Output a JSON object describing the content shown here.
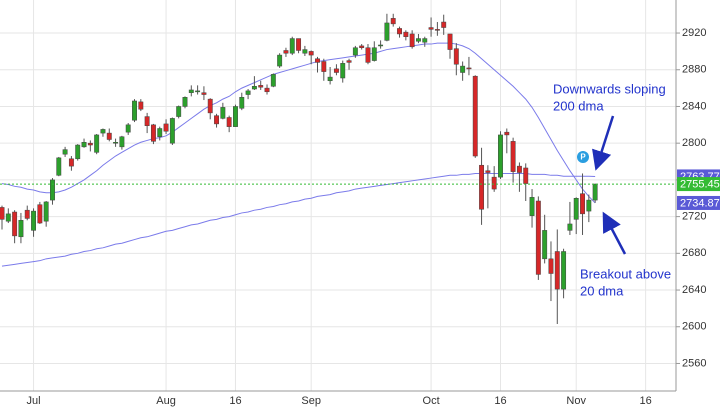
{
  "chart_data": {
    "type": "candlestick",
    "categories": [
      null,
      null,
      null,
      null,
      null,
      "Jul",
      null,
      null,
      null,
      null,
      null,
      null,
      null,
      null,
      null,
      null,
      null,
      null,
      null,
      null,
      null,
      null,
      null,
      null,
      null,
      null,
      "Aug",
      null,
      null,
      null,
      null,
      null,
      null,
      null,
      null,
      null,
      null,
      "16",
      null,
      null,
      null,
      null,
      null,
      null,
      null,
      null,
      null,
      null,
      null,
      "Sep",
      null,
      null,
      null,
      null,
      null,
      null,
      null,
      null,
      null,
      null,
      null,
      null,
      null,
      null,
      null,
      null,
      null,
      null,
      "Oct",
      null,
      null,
      null,
      null,
      null,
      null,
      null,
      null,
      null,
      null,
      "16",
      null,
      null,
      null,
      null,
      null,
      null,
      null,
      null,
      null,
      null,
      null,
      "Nov",
      null,
      null,
      null,
      null,
      null,
      null,
      null,
      null,
      null,
      null,
      "16"
    ],
    "open": [
      2730,
      2715,
      2725,
      2698,
      2727,
      2705,
      2733,
      2715,
      2738,
      2765,
      2788,
      2783,
      2783,
      2796,
      2800,
      2790,
      2811,
      2811,
      2800,
      2796,
      2812,
      2825,
      2845,
      2829,
      2820,
      2807,
      2821,
      2800,
      2829,
      2840,
      2855,
      2856,
      2855,
      2848,
      2830,
      2827,
      2828,
      2818,
      2838,
      2853,
      2859,
      2863,
      2860,
      2862,
      2884,
      2901,
      2898,
      2914,
      2898,
      2900,
      2892,
      2889,
      2868,
      2881,
      2871,
      2890,
      2896,
      2906,
      2904,
      2890,
      2906,
      2912,
      2936,
      2925,
      2921,
      2919,
      2911,
      2910,
      2926,
      2924,
      2932,
      2919,
      2903,
      2877,
      2882,
      2873,
      2776,
      2770,
      2763,
      2763,
      2812,
      2802,
      2775,
      2773,
      2721,
      2737,
      2674,
      2674,
      2682,
      2641,
      2705,
      2717,
      2745,
      2726,
      2738,
      null,
      null,
      null,
      null,
      null,
      null,
      null,
      null
    ],
    "high": [
      2732,
      2729,
      2727,
      2724,
      2732,
      2729,
      2736,
      2737,
      2762,
      2785,
      2796,
      2786,
      2799,
      2805,
      2803,
      2810,
      2816,
      2816,
      2805,
      2808,
      2822,
      2848,
      2848,
      2833,
      2821,
      2818,
      2826,
      2828,
      2841,
      2851,
      2863,
      2863,
      2862,
      2849,
      2832,
      2844,
      2830,
      2842,
      2855,
      2859,
      2873,
      2868,
      2864,
      2876,
      2898,
      2904,
      2916,
      2914,
      2906,
      2901,
      2894,
      2892,
      2883,
      2886,
      2890,
      2892,
      2906,
      2908,
      2908,
      2911,
      2912,
      2941,
      2941,
      2927,
      2923,
      2923,
      2919,
      2916,
      2937,
      2932,
      2940,
      2919,
      2909,
      2889,
      2894,
      2874,
      2795,
      2776,
      2775,
      2813,
      2816,
      2806,
      2779,
      2778,
      2750,
      2742,
      2722,
      2693,
      2706,
      2685,
      2736,
      2741,
      2767,
      2744,
      2756,
      null,
      null,
      null,
      null,
      null,
      null,
      null,
      null
    ],
    "low": [
      2706,
      2713,
      2691,
      2691,
      2716,
      2698,
      2712,
      2709,
      2733,
      2764,
      2785,
      2770,
      2781,
      2795,
      2791,
      2788,
      2807,
      2802,
      2796,
      2793,
      2809,
      2823,
      2835,
      2811,
      2799,
      2803,
      2810,
      2798,
      2827,
      2838,
      2851,
      2853,
      2847,
      2826,
      2817,
      2826,
      2812,
      2818,
      2836,
      2848,
      2858,
      2858,
      2853,
      2861,
      2882,
      2894,
      2896,
      2898,
      2895,
      2886,
      2877,
      2868,
      2864,
      2874,
      2866,
      2880,
      2893,
      2902,
      2886,
      2889,
      2903,
      2911,
      2927,
      2915,
      2912,
      2903,
      2909,
      2905,
      2916,
      2917,
      2918,
      2892,
      2874,
      2868,
      2874,
      2784,
      2711,
      2729,
      2747,
      2761,
      2789,
      2757,
      2747,
      2737,
      2708,
      2651,
      2669,
      2628,
      2603,
      2631,
      2700,
      2701,
      2700,
      2714,
      2735,
      null,
      null,
      null,
      null,
      null,
      null,
      null,
      null
    ],
    "close": [
      2717,
      2723,
      2699,
      2716,
      2718,
      2726,
      2713,
      2736,
      2760,
      2784,
      2793,
      2775,
      2798,
      2801,
      2798,
      2809,
      2815,
      2804,
      2801,
      2807,
      2820,
      2846,
      2837,
      2819,
      2802,
      2816,
      2813,
      2827,
      2840,
      2850,
      2858,
      2857,
      2853,
      2833,
      2821,
      2839,
      2818,
      2840,
      2850,
      2857,
      2862,
      2861,
      2856,
      2875,
      2896,
      2898,
      2914,
      2901,
      2902,
      2896,
      2888,
      2878,
      2872,
      2877,
      2887,
      2888,
      2904,
      2904,
      2888,
      2904,
      2907,
      2931,
      2930,
      2919,
      2916,
      2905,
      2914,
      2914,
      2924,
      2923,
      2926,
      2902,
      2886,
      2884,
      2881,
      2786,
      2728,
      2768,
      2750,
      2809,
      2809,
      2769,
      2768,
      2756,
      2741,
      2657,
      2705,
      2658,
      2641,
      2682,
      2712,
      2740,
      2723,
      2738,
      2755.45,
      null,
      null,
      null,
      null,
      null,
      null,
      null,
      null
    ],
    "up_color": "#2ca02c",
    "down_color": "#d62728",
    "lines": [
      {
        "color": "#7b7bea",
        "values": [
          2666,
          2667,
          2668,
          2669,
          2670,
          2671,
          2672,
          2674,
          2675,
          2676,
          2677,
          2679,
          2680,
          2682,
          2683,
          2685,
          2686,
          2688,
          2690,
          2691,
          2693,
          2695,
          2697,
          2698,
          2700,
          2702,
          2704,
          2705,
          2707,
          2709,
          2711,
          2712,
          2714,
          2716,
          2717,
          2719,
          2720,
          2722,
          2724,
          2725,
          2727,
          2728,
          2730,
          2731,
          2733,
          2734,
          2736,
          2737,
          2739,
          2740,
          2742,
          2743,
          2744,
          2746,
          2747,
          2748,
          2750,
          2751,
          2752,
          2753,
          2754,
          2755,
          2756,
          2757,
          2758,
          2759,
          2760,
          2761,
          2762,
          2763,
          2764,
          2765,
          2765,
          2766,
          2766,
          2767,
          2767,
          2767,
          2767,
          2767,
          2767,
          2767,
          2767,
          2767,
          2766,
          2766,
          2766,
          2765,
          2765,
          2764,
          2764,
          2764,
          2764,
          2764,
          2763.77,
          null,
          null,
          null,
          null,
          null,
          null,
          null,
          null
        ]
      },
      {
        "color": "#7b7bea",
        "values": [
          2756,
          2755,
          2753,
          2752,
          2750,
          2749,
          2747,
          2746,
          2746,
          2747,
          2749,
          2752,
          2756,
          2760,
          2765,
          2770,
          2776,
          2781,
          2786,
          2790,
          2794,
          2798,
          2801,
          2803,
          2805,
          2806,
          2808,
          2812,
          2817,
          2822,
          2827,
          2832,
          2837,
          2841,
          2844,
          2848,
          2851,
          2856,
          2860,
          2863,
          2866,
          2869,
          2872,
          2875,
          2877,
          2879,
          2881,
          2883,
          2885,
          2887,
          2889,
          2890,
          2891,
          2892,
          2893,
          2894,
          2895,
          2896,
          2897,
          2898,
          2900,
          2902,
          2903,
          2904,
          2905,
          2906,
          2907,
          2908,
          2908,
          2909,
          2909,
          2909,
          2908,
          2906,
          2903,
          2898,
          2892,
          2886,
          2880,
          2874,
          2868,
          2862,
          2855,
          2848,
          2839,
          2828,
          2816,
          2804,
          2792,
          2781,
          2770,
          2760,
          2750,
          2742,
          2734.87,
          null,
          null,
          null,
          null,
          null,
          null,
          null,
          null
        ]
      }
    ],
    "last_price_color": "#33bb33",
    "ylim": [
      2530,
      2956
    ],
    "yticks": [
      2560,
      2600,
      2640,
      2680,
      2720,
      2760,
      2800,
      2840,
      2880,
      2920
    ],
    "grid": true,
    "annotations": [
      {
        "lines": [
          "Downwards sloping",
          "200 dma"
        ]
      },
      {
        "lines": [
          "Breakout above",
          "20 dma"
        ]
      }
    ],
    "badge": "P"
  }
}
